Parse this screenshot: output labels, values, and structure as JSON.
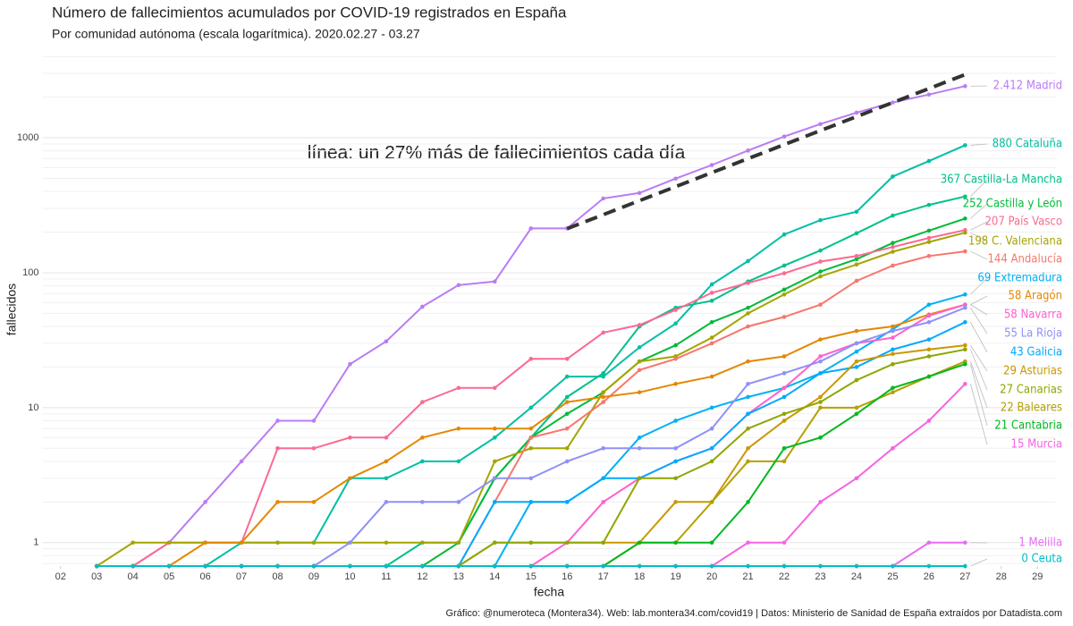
{
  "chart_data": {
    "type": "line",
    "title": "Número de fallecimientos acumulados por COVID-19 registrados en España",
    "subtitle": "Por comunidad autónoma (escala logarítmica). 2020.02.27 - 03.27",
    "x_label": "fecha",
    "y_label": "fallecidos",
    "caption": "Gráfico: @numeroteca (Montera34). Web: lab.montera34.com/covid19 | Datos: Ministerio de Sanidad de España extraídos por Datadista.com",
    "annotation": "línea: un 27% más de fallecimientos cada día",
    "log_y": true,
    "grid": true,
    "minor_grid": true,
    "xlim": [
      1.5,
      29.5
    ],
    "ylim": [
      0.67,
      4200
    ],
    "xticks": [
      {
        "value": 2,
        "label": "02"
      },
      {
        "value": 3,
        "label": "03"
      },
      {
        "value": 4,
        "label": "04"
      },
      {
        "value": 5,
        "label": "05"
      },
      {
        "value": 6,
        "label": "06"
      },
      {
        "value": 7,
        "label": "07"
      },
      {
        "value": 8,
        "label": "08"
      },
      {
        "value": 9,
        "label": "09"
      },
      10,
      11,
      12,
      13,
      14,
      15,
      16,
      17,
      18,
      19,
      20,
      21,
      22,
      23,
      24,
      25,
      26,
      27,
      28,
      29
    ],
    "yticks": [
      1,
      10,
      100,
      1000
    ],
    "x": [
      3,
      4,
      5,
      6,
      7,
      8,
      9,
      10,
      11,
      12,
      13,
      14,
      15,
      16,
      17,
      18,
      19,
      20,
      21,
      22,
      23,
      24,
      25,
      26,
      27
    ],
    "trend": {
      "color": "#333333",
      "x": [
        16,
        27
      ],
      "values": [
        212,
        2940
      ]
    },
    "series": [
      {
        "name": "Madrid",
        "label": "2.412 Madrid",
        "color": "#b97cf5",
        "values": [
          0,
          0,
          1,
          2,
          4,
          8,
          8,
          21,
          31,
          56,
          81,
          86,
          213,
          213,
          355,
          390,
          498,
          628,
          804,
          1021,
          1263,
          1535,
          1825,
          2090,
          2412
        ]
      },
      {
        "name": "Cataluña",
        "label": "880 Cataluña",
        "color": "#00bfa5",
        "values": [
          0,
          0,
          0,
          0,
          1,
          1,
          1,
          3,
          3,
          4,
          4,
          6,
          10,
          17,
          17,
          28,
          42,
          82,
          122,
          192,
          245,
          283,
          516,
          672,
          880
        ]
      },
      {
        "name": "Castilla-La Mancha",
        "label": "367 Castilla-La Mancha",
        "color": "#00c08b",
        "values": [
          0,
          0,
          0,
          0,
          0,
          0,
          0,
          0,
          0,
          1,
          1,
          3,
          6,
          12,
          18,
          40,
          55,
          62,
          86,
          113,
          146,
          196,
          265,
          318,
          367
        ]
      },
      {
        "name": "Castilla y León",
        "label": "252 Castilla y León",
        "color": "#00ba38",
        "values": [
          0,
          0,
          0,
          0,
          0,
          0,
          0,
          0,
          0,
          0,
          1,
          3,
          6,
          9,
          13,
          22,
          29,
          43,
          55,
          75,
          102,
          126,
          166,
          205,
          252
        ]
      },
      {
        "name": "País Vasco",
        "label": "207 País Vasco",
        "color": "#fb6a92",
        "values": [
          0,
          0,
          1,
          1,
          1,
          5,
          5,
          6,
          6,
          11,
          14,
          14,
          23,
          23,
          36,
          41,
          53,
          71,
          84,
          99,
          121,
          133,
          155,
          181,
          207
        ]
      },
      {
        "name": "C. Valenciana",
        "label": "198 C. Valenciana",
        "color": "#a3a500",
        "values": [
          0,
          1,
          1,
          1,
          1,
          1,
          1,
          1,
          1,
          1,
          1,
          4,
          5,
          5,
          13,
          22,
          24,
          33,
          50,
          69,
          94,
          115,
          143,
          169,
          198
        ]
      },
      {
        "name": "Andalucía",
        "label": "144 Andalucía",
        "color": "#f8766d",
        "values": [
          0,
          0,
          0,
          0,
          0,
          0,
          0,
          0,
          0,
          0,
          0,
          2,
          6,
          7,
          11,
          19,
          23,
          30,
          40,
          47,
          58,
          87,
          113,
          133,
          144
        ]
      },
      {
        "name": "Extremadura",
        "label": "69 Extremadura",
        "color": "#00b0f6",
        "values": [
          0,
          0,
          0,
          0,
          0,
          0,
          0,
          0,
          0,
          0,
          0,
          0,
          2,
          2,
          3,
          6,
          8,
          10,
          12,
          14,
          18,
          26,
          38,
          58,
          69
        ]
      },
      {
        "name": "Aragón",
        "label": "58 Aragón",
        "color": "#e58700",
        "values": [
          0,
          0,
          0,
          1,
          1,
          2,
          2,
          3,
          4,
          6,
          7,
          7,
          7,
          11,
          12,
          13,
          15,
          17,
          22,
          24,
          32,
          37,
          40,
          49,
          58
        ]
      },
      {
        "name": "Navarra",
        "label": "58 Navarra",
        "color": "#fd61d1",
        "values": [
          0,
          0,
          0,
          0,
          0,
          0,
          0,
          0,
          0,
          0,
          0,
          0,
          0,
          1,
          2,
          3,
          4,
          5,
          9,
          14,
          24,
          30,
          33,
          48,
          58
        ]
      },
      {
        "name": "La Rioja",
        "label": "55 La Rioja",
        "color": "#8f91f5",
        "values": [
          0,
          0,
          0,
          0,
          0,
          0,
          0,
          1,
          2,
          2,
          2,
          3,
          3,
          4,
          5,
          5,
          5,
          7,
          15,
          18,
          22,
          30,
          37,
          43,
          55
        ]
      },
      {
        "name": "Galicia",
        "label": "43 Galicia",
        "color": "#00a9ff",
        "values": [
          0,
          0,
          0,
          0,
          0,
          0,
          0,
          0,
          0,
          0,
          0,
          2,
          2,
          2,
          3,
          3,
          4,
          5,
          9,
          12,
          18,
          20,
          27,
          32,
          43
        ]
      },
      {
        "name": "Asturias",
        "label": "29 Asturias",
        "color": "#c99800",
        "values": [
          0,
          0,
          0,
          0,
          0,
          0,
          0,
          0,
          0,
          0,
          0,
          1,
          1,
          1,
          1,
          1,
          2,
          2,
          5,
          8,
          12,
          22,
          25,
          27,
          29
        ]
      },
      {
        "name": "Canarias",
        "label": "27 Canarias",
        "color": "#8fa600",
        "values": [
          0,
          0,
          0,
          0,
          0,
          0,
          0,
          0,
          0,
          0,
          0,
          1,
          1,
          1,
          1,
          3,
          3,
          4,
          7,
          9,
          11,
          16,
          21,
          24,
          27
        ]
      },
      {
        "name": "Baleares",
        "label": "22 Baleares",
        "color": "#b5a000",
        "values": [
          0,
          0,
          0,
          0,
          0,
          0,
          0,
          0,
          0,
          0,
          0,
          0,
          0,
          0,
          0,
          1,
          1,
          2,
          4,
          4,
          10,
          10,
          13,
          17,
          22
        ]
      },
      {
        "name": "Cantabria",
        "label": "21 Cantabria",
        "color": "#00b81f",
        "values": [
          0,
          0,
          0,
          0,
          0,
          0,
          0,
          0,
          0,
          0,
          0,
          0,
          0,
          0,
          0,
          1,
          1,
          1,
          2,
          5,
          6,
          9,
          14,
          17,
          21
        ]
      },
      {
        "name": "Murcia",
        "label": "15 Murcia",
        "color": "#f564e3",
        "values": [
          0,
          0,
          0,
          0,
          0,
          0,
          0,
          0,
          0,
          0,
          0,
          0,
          0,
          0,
          0,
          0,
          0,
          0,
          1,
          1,
          2,
          3,
          5,
          8,
          15
        ]
      },
      {
        "name": "Melilla",
        "label": "1 Melilla",
        "color": "#e76bf3",
        "values": [
          0,
          0,
          0,
          0,
          0,
          0,
          0,
          0,
          0,
          0,
          0,
          0,
          0,
          0,
          0,
          0,
          0,
          0,
          0,
          0,
          0,
          0,
          0,
          1,
          1
        ]
      },
      {
        "name": "Ceuta",
        "label": "0 Ceuta",
        "color": "#00bfc4",
        "values": [
          0,
          0,
          0,
          0,
          0,
          0,
          0,
          0,
          0,
          0,
          0,
          0,
          0,
          0,
          0,
          0,
          0,
          0,
          0,
          0,
          0,
          0,
          0,
          0,
          0
        ]
      }
    ]
  }
}
